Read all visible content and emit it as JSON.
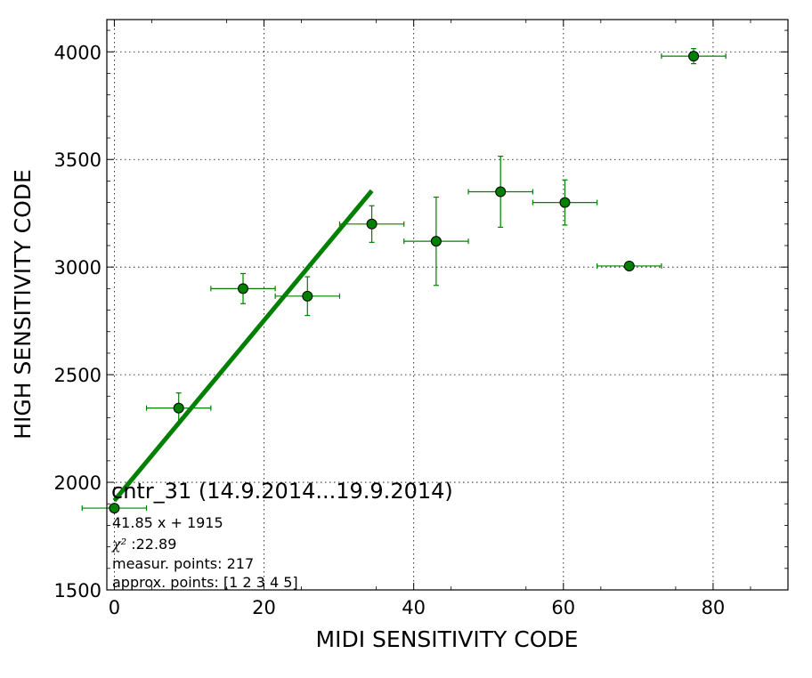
{
  "chart_data": {
    "type": "scatter",
    "xlabel": "MIDI SENSITIVITY CODE",
    "ylabel": "HIGH SENSITIVITY CODE",
    "xlim": [
      -1,
      90
    ],
    "ylim": [
      1500,
      4150
    ],
    "x_ticks": [
      0,
      20,
      40,
      60,
      80
    ],
    "x_tick_labels": [
      "0",
      "20",
      "40",
      "60",
      "80"
    ],
    "y_ticks": [
      1500,
      2000,
      2500,
      3000,
      3500,
      4000
    ],
    "y_tick_labels": [
      "1500",
      "2000",
      "2500",
      "3000",
      "3500",
      "4000"
    ],
    "grid": true,
    "color": "#008000",
    "marker_face": "#008000",
    "series": [
      {
        "points": [
          {
            "x": 0.0,
            "y": 1880,
            "xerr": 4.3,
            "yerr": 0
          },
          {
            "x": 8.6,
            "y": 2345,
            "xerr": 4.3,
            "yerr": 70
          },
          {
            "x": 17.2,
            "y": 2900,
            "xerr": 4.3,
            "yerr": 70
          },
          {
            "x": 25.8,
            "y": 2865,
            "xerr": 4.3,
            "yerr": 90
          },
          {
            "x": 34.4,
            "y": 3200,
            "xerr": 4.3,
            "yerr": 85
          },
          {
            "x": 43.0,
            "y": 3120,
            "xerr": 4.3,
            "yerr": 205
          },
          {
            "x": 51.6,
            "y": 3350,
            "xerr": 4.3,
            "yerr": 165
          },
          {
            "x": 60.2,
            "y": 3300,
            "xerr": 4.3,
            "yerr": 105
          },
          {
            "x": 68.8,
            "y": 3005,
            "xerr": 4.3,
            "yerr": 0
          },
          {
            "x": 77.4,
            "y": 3980,
            "xerr": 4.3,
            "yerr": 35
          }
        ]
      }
    ],
    "fit_line": {
      "slope": 41.85,
      "intercept": 1915,
      "x_range": [
        0,
        34.4
      ]
    },
    "annotation": {
      "title": "cntr_31 (14.9.2014...19.9.2014)",
      "equation": "41.85 x + 1915",
      "chi_symbol": "χ²",
      "chi_value": " :22.89",
      "measured": "measur. points: 217",
      "approx": "approx. points: [1 2 3 4 5]"
    }
  }
}
